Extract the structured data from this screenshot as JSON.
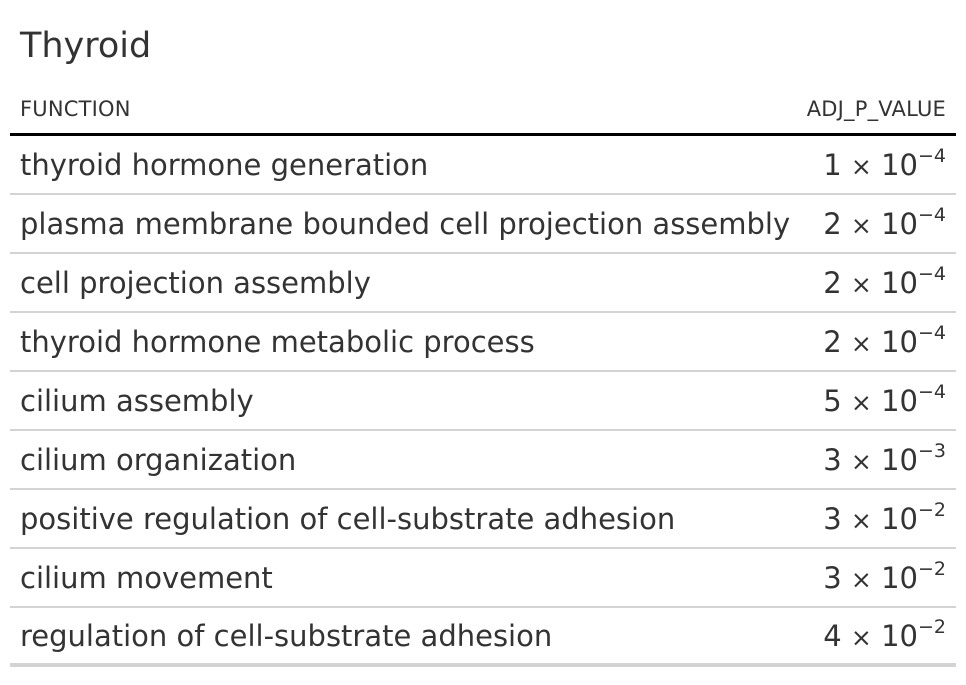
{
  "title": "Thyroid",
  "columns": {
    "function": "FUNCTION",
    "adj_p_value": "ADJ_P_VALUE"
  },
  "rows": [
    {
      "function": "thyroid hormone generation",
      "mantissa": "1",
      "times": "×",
      "base": "10",
      "exponent": "−4"
    },
    {
      "function": "plasma membrane bounded cell projection assembly",
      "mantissa": "2",
      "times": "×",
      "base": "10",
      "exponent": "−4"
    },
    {
      "function": "cell projection assembly",
      "mantissa": "2",
      "times": "×",
      "base": "10",
      "exponent": "−4"
    },
    {
      "function": "thyroid hormone metabolic process",
      "mantissa": "2",
      "times": "×",
      "base": "10",
      "exponent": "−4"
    },
    {
      "function": "cilium assembly",
      "mantissa": "5",
      "times": "×",
      "base": "10",
      "exponent": "−4"
    },
    {
      "function": "cilium organization",
      "mantissa": "3",
      "times": "×",
      "base": "10",
      "exponent": "−3"
    },
    {
      "function": "positive regulation of cell-substrate adhesion",
      "mantissa": "3",
      "times": "×",
      "base": "10",
      "exponent": "−2"
    },
    {
      "function": "cilium movement",
      "mantissa": "3",
      "times": "×",
      "base": "10",
      "exponent": "−2"
    },
    {
      "function": "regulation of cell-substrate adhesion",
      "mantissa": "4",
      "times": "×",
      "base": "10",
      "exponent": "−2"
    }
  ]
}
